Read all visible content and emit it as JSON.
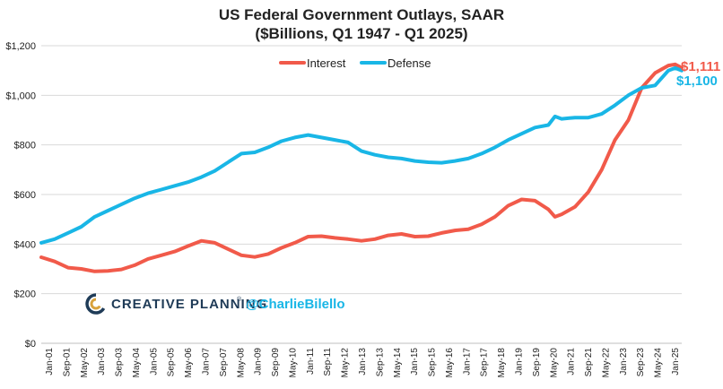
{
  "chart_data": {
    "type": "line",
    "title": "US Federal Government Outlays, SAAR",
    "subtitle": "($Billions, Q1 1947 - Q1 2025)",
    "xlabel": "",
    "ylabel": "",
    "ylim": [
      0,
      1200
    ],
    "y_ticks": [
      "$0",
      "$200",
      "$400",
      "$600",
      "$800",
      "$1,000",
      "$1,200"
    ],
    "y_tick_values": [
      0,
      200,
      400,
      600,
      800,
      1000,
      1200
    ],
    "x_ticks": [
      "Jan-01",
      "Sep-01",
      "May-02",
      "Jan-03",
      "Sep-03",
      "May-04",
      "Jan-05",
      "Sep-05",
      "May-06",
      "Jan-07",
      "Sep-07",
      "May-08",
      "Jan-09",
      "Sep-09",
      "May-10",
      "Jan-11",
      "Sep-11",
      "May-12",
      "Jan-13",
      "Sep-13",
      "May-14",
      "Jan-15",
      "Sep-15",
      "May-16",
      "Jan-17",
      "Sep-17",
      "May-18",
      "Jan-19",
      "Sep-19",
      "May-20",
      "Jan-21",
      "Sep-21",
      "May-22",
      "Jan-23",
      "Sep-23",
      "May-24",
      "Jan-25"
    ],
    "x_start_year": 2001,
    "x_end_year": 2025,
    "grid": true,
    "legend_position": "top-center",
    "series": [
      {
        "name": "Interest",
        "color": "#f15a4a",
        "end_label": "$1,111",
        "x": [
          2001.0,
          2001.5,
          2002.0,
          2002.5,
          2003.0,
          2003.5,
          2004.0,
          2004.5,
          2005.0,
          2005.5,
          2006.0,
          2006.5,
          2007.0,
          2007.5,
          2008.0,
          2008.5,
          2009.0,
          2009.5,
          2010.0,
          2010.5,
          2011.0,
          2011.5,
          2012.0,
          2012.5,
          2013.0,
          2013.5,
          2014.0,
          2014.5,
          2015.0,
          2015.5,
          2016.0,
          2016.5,
          2017.0,
          2017.5,
          2018.0,
          2018.5,
          2019.0,
          2019.5,
          2020.0,
          2020.25,
          2020.5,
          2021.0,
          2021.5,
          2022.0,
          2022.5,
          2023.0,
          2023.5,
          2024.0,
          2024.5,
          2024.75,
          2025.0
        ],
        "values": [
          347,
          330,
          305,
          300,
          290,
          292,
          298,
          315,
          340,
          355,
          370,
          392,
          413,
          405,
          380,
          355,
          348,
          360,
          385,
          405,
          430,
          432,
          425,
          420,
          413,
          420,
          435,
          441,
          430,
          432,
          445,
          455,
          460,
          480,
          510,
          555,
          580,
          575,
          540,
          510,
          520,
          550,
          610,
          700,
          820,
          900,
          1030,
          1090,
          1120,
          1125,
          1111
        ]
      },
      {
        "name": "Defense",
        "color": "#19b6e6",
        "end_label": "$1,100",
        "x": [
          2001.0,
          2001.5,
          2002.0,
          2002.5,
          2003.0,
          2003.5,
          2004.0,
          2004.5,
          2005.0,
          2005.5,
          2006.0,
          2006.5,
          2007.0,
          2007.5,
          2008.0,
          2008.5,
          2009.0,
          2009.5,
          2010.0,
          2010.5,
          2011.0,
          2011.5,
          2012.0,
          2012.5,
          2013.0,
          2013.5,
          2014.0,
          2014.5,
          2015.0,
          2015.5,
          2016.0,
          2016.5,
          2017.0,
          2017.5,
          2018.0,
          2018.5,
          2019.0,
          2019.5,
          2020.0,
          2020.25,
          2020.5,
          2021.0,
          2021.5,
          2022.0,
          2022.5,
          2023.0,
          2023.5,
          2024.0,
          2024.5,
          2024.75,
          2025.0
        ],
        "values": [
          405,
          420,
          445,
          470,
          510,
          535,
          560,
          585,
          605,
          620,
          635,
          650,
          670,
          695,
          730,
          765,
          770,
          790,
          815,
          830,
          840,
          830,
          820,
          810,
          775,
          760,
          750,
          745,
          735,
          730,
          728,
          735,
          745,
          765,
          790,
          820,
          845,
          870,
          880,
          915,
          905,
          910,
          910,
          925,
          960,
          1000,
          1030,
          1040,
          1100,
          1110,
          1100
        ]
      }
    ]
  },
  "watermark": {
    "brand": "CREATIVE PLANNING",
    "registered_mark": "®",
    "handle": "@CharlieBilello"
  }
}
